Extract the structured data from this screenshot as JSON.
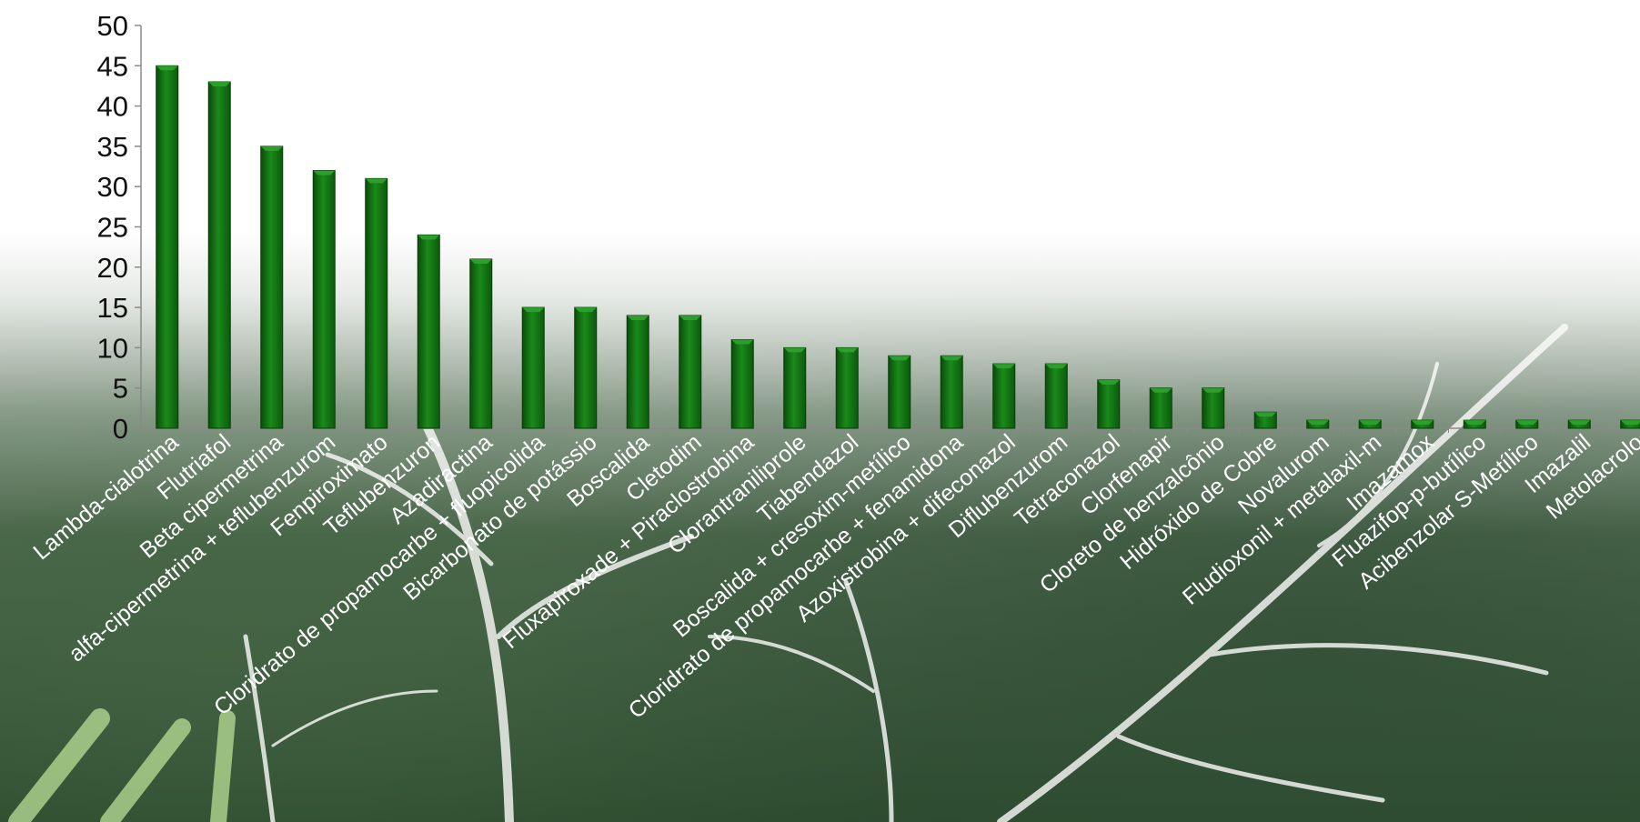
{
  "chart_data": {
    "type": "bar",
    "title": "",
    "xlabel": "",
    "ylabel": "",
    "ylim": [
      0,
      50
    ],
    "yticks": [
      0,
      5,
      10,
      15,
      20,
      25,
      30,
      35,
      40,
      45,
      50
    ],
    "grid": false,
    "legend": "none",
    "bar_color": "#137a13",
    "bar_color_dark": "#0a4d0a",
    "categories": [
      "Lambda-cialotrina",
      "Flutriafol",
      "Beta cipermetrina",
      "alfa-cipermetrina + teflubenzurom",
      "Fenpiroximato",
      "Teflubenzuron",
      "Azadiractina",
      "Cloridrato de propamocarbe + fluopicolida",
      "Bicarbonato de potássio",
      "Boscalida",
      "Cletodim",
      "Fluxapiroxade + Piraclostrobina",
      "Clorantraniliprole",
      "Tiabendazol",
      "Boscalida + cresoxim-metílico",
      "Cloridrato de propamocarbe + fenamidona",
      "Azoxistrobina + difeconazol",
      "Diflubenzurom",
      "Tetraconazol",
      "Clorfenapir",
      "Cloreto de benzalcônio",
      "Hidróxido de Cobre",
      "Novalurom",
      "Fludioxonil + metalaxil-m",
      "Imazamox",
      "Fluazifop-p-butílico",
      "Acibenzolar S-Metílico",
      "Imazalil",
      "Metolacrolo"
    ],
    "values": [
      45,
      43,
      35,
      32,
      31,
      24,
      21,
      15,
      15,
      14,
      14,
      11,
      10,
      10,
      9,
      9,
      8,
      8,
      6,
      5,
      5,
      2,
      1,
      1,
      1,
      1,
      1,
      1,
      1
    ]
  }
}
